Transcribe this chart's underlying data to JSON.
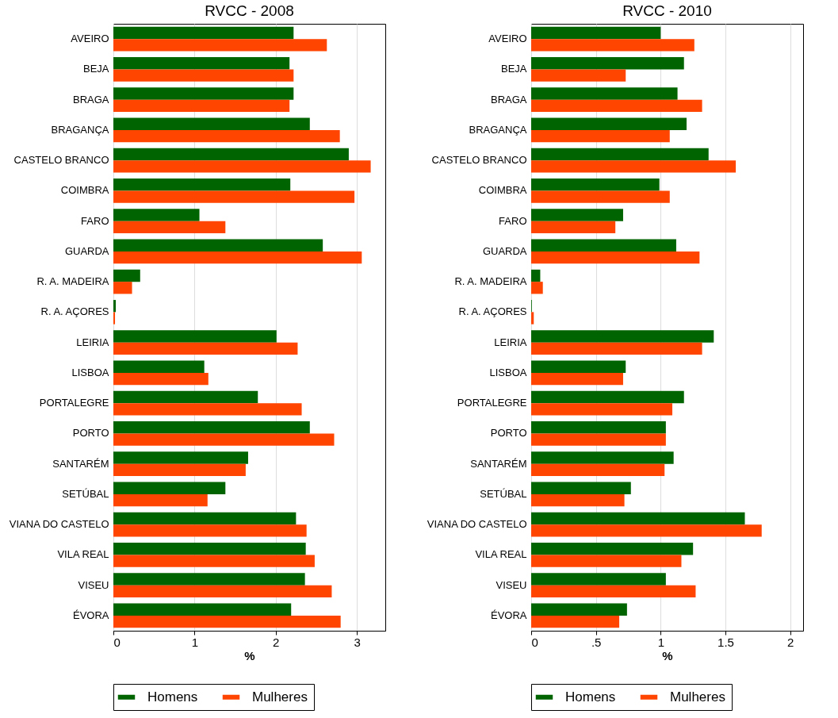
{
  "chart_data": [
    {
      "type": "bar",
      "orientation": "horizontal",
      "title": "RVCC - 2008",
      "xlabel": "%",
      "categories": [
        "AVEIRO",
        "BEJA",
        "BRAGA",
        "BRAGANÇA",
        "CASTELO BRANCO",
        "COIMBRA",
        "FARO",
        "GUARDA",
        "R. A. MADEIRA",
        "R. A. AÇORES",
        "LEIRIA",
        "LISBOA",
        "PORTALEGRE",
        "PORTO",
        "SANTARÉM",
        "SETÚBAL",
        "VIANA DO CASTELO",
        "VILA REAL",
        "VISEU",
        "ÉVORA"
      ],
      "series": [
        {
          "name": "Homens",
          "color": "#006400",
          "values": [
            2.22,
            2.17,
            2.22,
            2.42,
            2.9,
            2.18,
            1.06,
            2.58,
            0.33,
            0.03,
            2.01,
            1.12,
            1.78,
            2.42,
            1.66,
            1.38,
            2.25,
            2.37,
            2.36,
            2.19
          ]
        },
        {
          "name": "Mulheres",
          "color": "#ff4500",
          "values": [
            2.63,
            2.22,
            2.17,
            2.79,
            3.17,
            2.97,
            1.38,
            3.06,
            0.23,
            0.02,
            2.27,
            1.17,
            2.32,
            2.72,
            1.63,
            1.16,
            2.38,
            2.48,
            2.69,
            2.8
          ]
        }
      ],
      "xlim": [
        0,
        3.35
      ],
      "xticks": [
        0,
        1,
        2,
        3
      ],
      "grid": "x",
      "legend": "bottom"
    },
    {
      "type": "bar",
      "orientation": "horizontal",
      "title": "RVCC - 2010",
      "xlabel": "%",
      "categories": [
        "AVEIRO",
        "BEJA",
        "BRAGA",
        "BRAGANÇA",
        "CASTELO BRANCO",
        "COIMBRA",
        "FARO",
        "GUARDA",
        "R. A. MADEIRA",
        "R. A. AÇORES",
        "LEIRIA",
        "LISBOA",
        "PORTALEGRE",
        "PORTO",
        "SANTARÉM",
        "SETÚBAL",
        "VIANA DO CASTELO",
        "VILA REAL",
        "VISEU",
        "ÉVORA"
      ],
      "series": [
        {
          "name": "Homens",
          "color": "#006400",
          "values": [
            1.0,
            1.18,
            1.13,
            1.2,
            1.37,
            0.99,
            0.71,
            1.12,
            0.07,
            0.005,
            1.41,
            0.73,
            1.18,
            1.04,
            1.1,
            0.77,
            1.65,
            1.25,
            1.04,
            0.74
          ]
        },
        {
          "name": "Mulheres",
          "color": "#ff4500",
          "values": [
            1.26,
            0.73,
            1.32,
            1.07,
            1.58,
            1.07,
            0.65,
            1.3,
            0.09,
            0.02,
            1.32,
            0.71,
            1.09,
            1.04,
            1.03,
            0.72,
            1.78,
            1.16,
            1.27,
            0.68
          ]
        }
      ],
      "xlim": [
        0,
        2.1
      ],
      "xticks": [
        0,
        {
          "value": 0.5,
          "label": ".5"
        },
        1,
        1.5,
        2
      ],
      "grid": "x",
      "legend": "bottom"
    }
  ]
}
